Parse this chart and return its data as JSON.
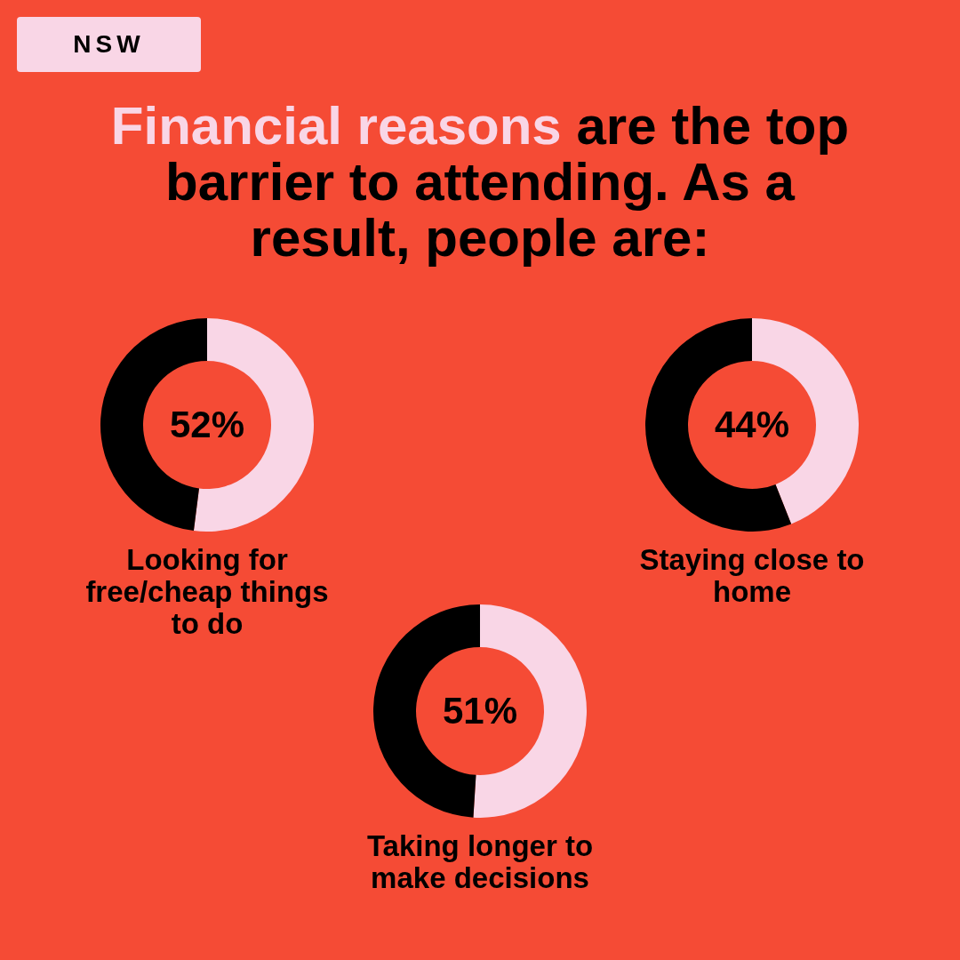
{
  "chart_data": [
    {
      "type": "other",
      "title": "Financial reasons are the top barrier to attending. As a result, people are:",
      "annotations": [
        "NSW"
      ]
    },
    {
      "type": "donut",
      "title": "Looking for free/cheap things to do",
      "categories": [
        null,
        null
      ],
      "values": [
        52,
        48
      ],
      "colors": [
        "#f9d6e6",
        "#000000"
      ],
      "value_labels": [
        "52%",
        null
      ]
    },
    {
      "type": "donut",
      "title": "Staying close to home",
      "categories": [
        null,
        null
      ],
      "values": [
        44,
        56
      ],
      "colors": [
        "#f9d6e6",
        "#000000"
      ],
      "value_labels": [
        "44%",
        null
      ]
    },
    {
      "type": "donut",
      "title": "Taking longer to make decisions",
      "categories": [
        null,
        null
      ],
      "values": [
        51,
        49
      ],
      "colors": [
        "#f9d6e6",
        "#000000"
      ],
      "value_labels": [
        "51%",
        null
      ]
    }
  ]
}
